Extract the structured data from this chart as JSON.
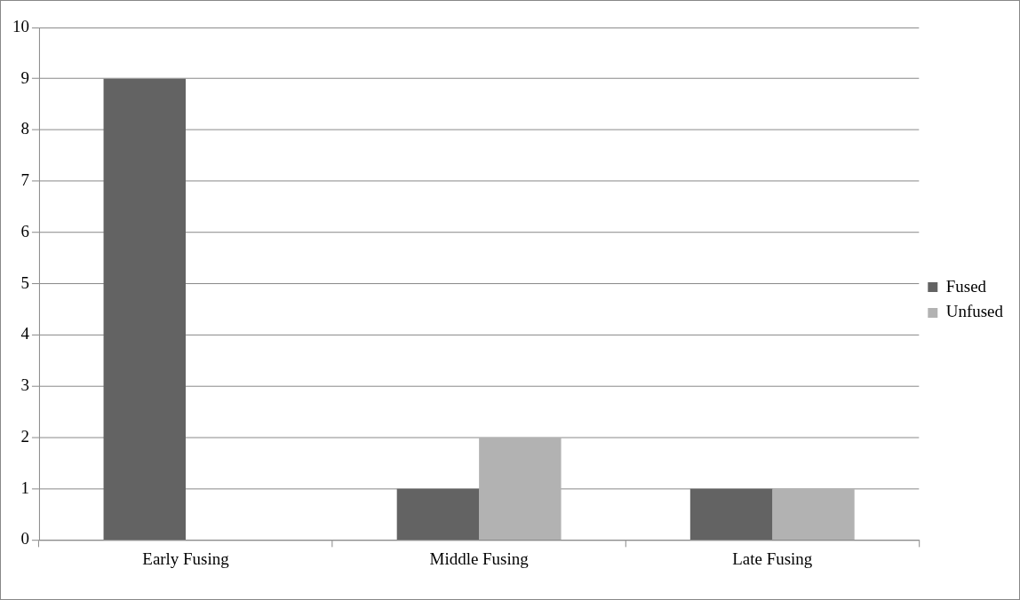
{
  "chart_data": {
    "type": "bar",
    "categories": [
      "Early Fusing",
      "Middle Fusing",
      "Late Fusing"
    ],
    "series": [
      {
        "name": "Fused",
        "color": "#636363",
        "values": [
          9,
          1,
          1
        ]
      },
      {
        "name": "Unfused",
        "color": "#b2b2b2",
        "values": [
          0,
          2,
          1
        ]
      }
    ],
    "ylim": [
      0,
      10
    ],
    "yticks": [
      0,
      1,
      2,
      3,
      4,
      5,
      6,
      7,
      8,
      9,
      10
    ],
    "grid": "y",
    "legend": "right"
  }
}
